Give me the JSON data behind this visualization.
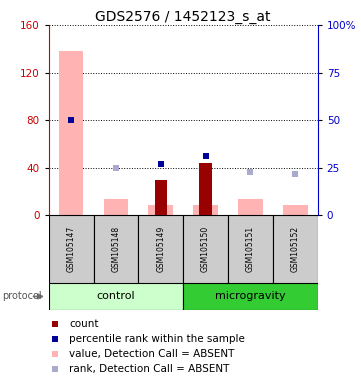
{
  "title": "GDS2576 / 1452123_s_at",
  "samples": [
    "GSM105147",
    "GSM105148",
    "GSM105149",
    "GSM105150",
    "GSM105151",
    "GSM105152"
  ],
  "groups": [
    "control",
    "control",
    "control",
    "microgravity",
    "microgravity",
    "microgravity"
  ],
  "pink_bars": [
    138,
    14,
    9,
    9,
    14,
    9
  ],
  "dark_red_bars": [
    0,
    0,
    30,
    44,
    0,
    0
  ],
  "blue_squares_pct": [
    50,
    null,
    27,
    31,
    null,
    null
  ],
  "light_blue_squares_pct": [
    null,
    25,
    null,
    null,
    23,
    22
  ],
  "ylim_left": [
    0,
    160
  ],
  "ylim_right": [
    0,
    100
  ],
  "yticks_left": [
    0,
    40,
    80,
    120,
    160
  ],
  "yticks_right": [
    0,
    25,
    50,
    75,
    100
  ],
  "ytick_labels_right": [
    "0",
    "25",
    "50",
    "75",
    "100%"
  ],
  "pink_color": "#FFB3B3",
  "dark_red_color": "#990000",
  "blue_color": "#000099",
  "light_blue_color": "#AAAACC",
  "control_color_light": "#CCFFCC",
  "control_color_dark": "#44DD44",
  "microgravity_color": "#33CC33",
  "sample_box_color": "#CCCCCC",
  "title_fontsize": 10,
  "tick_fontsize": 7.5,
  "legend_fontsize": 7.5,
  "left_axis_color": "#CC0000",
  "right_axis_color": "#0000CC"
}
